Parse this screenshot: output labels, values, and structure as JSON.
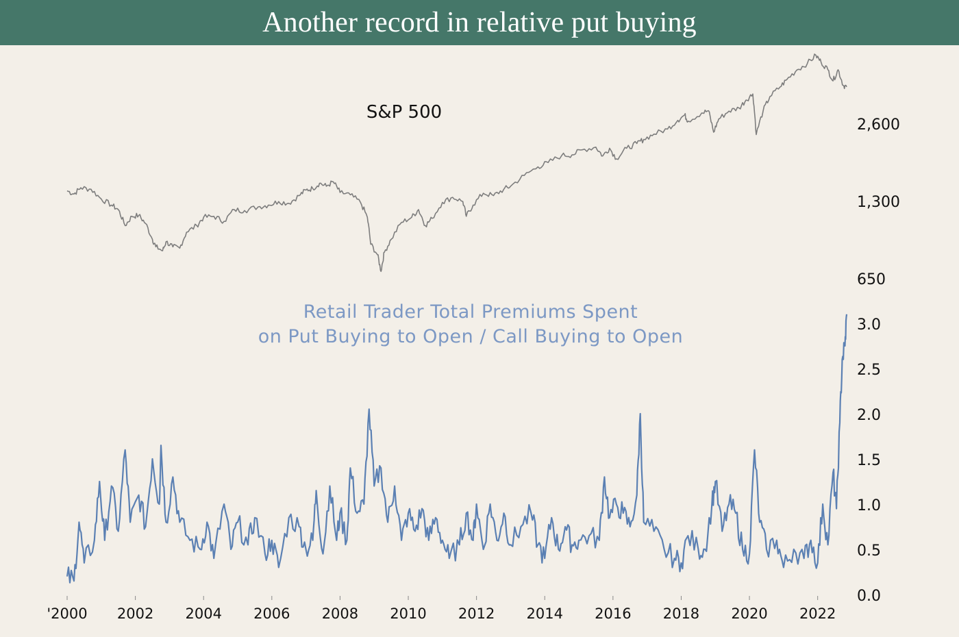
{
  "title": "Another record in relative put buying",
  "colors": {
    "header_bg": "#457769",
    "background": "#f3efe8",
    "sp500_line": "#7d7d7d",
    "ratio_line": "#5b80b3",
    "ratio_label": "#7c98c4",
    "text": "#111111"
  },
  "chart_data": [
    {
      "type": "line",
      "title": "S&P 500",
      "y_scale": "log",
      "yticks": [
        650,
        1300,
        2600
      ],
      "ytick_labels": [
        "650",
        "1,300",
        "2,600"
      ],
      "x_range": [
        2000.0,
        2022.85
      ],
      "series": [
        {
          "values": [
            [
              2000.0,
              1420
            ],
            [
              2000.2,
              1380
            ],
            [
              2000.4,
              1460
            ],
            [
              2000.7,
              1440
            ],
            [
              2001.0,
              1320
            ],
            [
              2001.3,
              1250
            ],
            [
              2001.5,
              1200
            ],
            [
              2001.7,
              1040
            ],
            [
              2001.9,
              1130
            ],
            [
              2002.1,
              1140
            ],
            [
              2002.3,
              1060
            ],
            [
              2002.5,
              920
            ],
            [
              2002.6,
              860
            ],
            [
              2002.8,
              830
            ],
            [
              2002.9,
              900
            ],
            [
              2003.1,
              860
            ],
            [
              2003.3,
              850
            ],
            [
              2003.5,
              980
            ],
            [
              2003.8,
              1040
            ],
            [
              2004.0,
              1120
            ],
            [
              2004.3,
              1130
            ],
            [
              2004.6,
              1080
            ],
            [
              2004.9,
              1200
            ],
            [
              2005.2,
              1190
            ],
            [
              2005.6,
              1230
            ],
            [
              2005.9,
              1250
            ],
            [
              2006.2,
              1290
            ],
            [
              2006.5,
              1270
            ],
            [
              2006.8,
              1360
            ],
            [
              2007.0,
              1430
            ],
            [
              2007.2,
              1450
            ],
            [
              2007.4,
              1520
            ],
            [
              2007.6,
              1480
            ],
            [
              2007.8,
              1540
            ],
            [
              2008.0,
              1400
            ],
            [
              2008.3,
              1370
            ],
            [
              2008.6,
              1280
            ],
            [
              2008.8,
              1120
            ],
            [
              2008.9,
              880
            ],
            [
              2009.1,
              800
            ],
            [
              2009.2,
              690
            ],
            [
              2009.3,
              820
            ],
            [
              2009.5,
              920
            ],
            [
              2009.8,
              1070
            ],
            [
              2010.1,
              1120
            ],
            [
              2010.3,
              1200
            ],
            [
              2010.5,
              1040
            ],
            [
              2010.7,
              1110
            ],
            [
              2011.0,
              1280
            ],
            [
              2011.3,
              1340
            ],
            [
              2011.6,
              1290
            ],
            [
              2011.7,
              1130
            ],
            [
              2011.9,
              1250
            ],
            [
              2012.2,
              1390
            ],
            [
              2012.5,
              1360
            ],
            [
              2012.8,
              1440
            ],
            [
              2013.0,
              1480
            ],
            [
              2013.4,
              1630
            ],
            [
              2013.8,
              1760
            ],
            [
              2014.1,
              1830
            ],
            [
              2014.5,
              1950
            ],
            [
              2014.8,
              1960
            ],
            [
              2015.1,
              2050
            ],
            [
              2015.5,
              2100
            ],
            [
              2015.7,
              1940
            ],
            [
              2015.9,
              2080
            ],
            [
              2016.1,
              1890
            ],
            [
              2016.4,
              2080
            ],
            [
              2016.7,
              2170
            ],
            [
              2016.9,
              2250
            ],
            [
              2017.2,
              2360
            ],
            [
              2017.6,
              2470
            ],
            [
              2017.9,
              2670
            ],
            [
              2018.1,
              2800
            ],
            [
              2018.2,
              2650
            ],
            [
              2018.6,
              2850
            ],
            [
              2018.8,
              2910
            ],
            [
              2018.95,
              2400
            ],
            [
              2019.1,
              2700
            ],
            [
              2019.4,
              2900
            ],
            [
              2019.7,
              2980
            ],
            [
              2019.9,
              3200
            ],
            [
              2020.1,
              3380
            ],
            [
              2020.2,
              2350
            ],
            [
              2020.4,
              2900
            ],
            [
              2020.6,
              3300
            ],
            [
              2020.9,
              3600
            ],
            [
              2021.1,
              3850
            ],
            [
              2021.4,
              4200
            ],
            [
              2021.7,
              4450
            ],
            [
              2021.95,
              4780
            ],
            [
              2022.1,
              4500
            ],
            [
              2022.3,
              4200
            ],
            [
              2022.45,
              3800
            ],
            [
              2022.6,
              4200
            ],
            [
              2022.75,
              3650
            ],
            [
              2022.85,
              3600
            ]
          ]
        }
      ]
    },
    {
      "type": "line",
      "title": "Retail Trader Total Premiums Spent on Put Buying to Open / Call Buying to Open",
      "title_lines": [
        "Retail Trader Total Premiums Spent",
        "on Put Buying to Open / Call Buying to Open"
      ],
      "y_range": [
        0,
        3.0
      ],
      "yticks": [
        0.0,
        0.5,
        1.0,
        1.5,
        2.0,
        2.5,
        3.0
      ],
      "ytick_labels": [
        "0.0",
        "0.5",
        "1.0",
        "1.5",
        "2.0",
        "2.5",
        "3.0"
      ],
      "xticks": [
        2000,
        2002,
        2004,
        2006,
        2008,
        2010,
        2012,
        2014,
        2016,
        2018,
        2020,
        2022
      ],
      "xtick_labels": [
        "'2000",
        "2002",
        "2004",
        "2006",
        "2008",
        "2010",
        "2012",
        "2014",
        "2016",
        "2018",
        "2020",
        "2022"
      ],
      "x_range": [
        2000.0,
        2022.85
      ],
      "series": [
        {
          "values": [
            [
              2000.0,
              0.2
            ],
            [
              2000.2,
              0.15
            ],
            [
              2000.35,
              0.8
            ],
            [
              2000.5,
              0.35
            ],
            [
              2000.8,
              0.6
            ],
            [
              2000.95,
              1.25
            ],
            [
              2001.1,
              0.6
            ],
            [
              2001.3,
              1.2
            ],
            [
              2001.5,
              0.7
            ],
            [
              2001.7,
              1.6
            ],
            [
              2001.85,
              0.8
            ],
            [
              2002.1,
              1.1
            ],
            [
              2002.3,
              0.75
            ],
            [
              2002.5,
              1.5
            ],
            [
              2002.7,
              1.0
            ],
            [
              2002.75,
              1.65
            ],
            [
              2002.9,
              0.8
            ],
            [
              2003.1,
              1.3
            ],
            [
              2003.3,
              0.8
            ],
            [
              2003.6,
              0.6
            ],
            [
              2003.9,
              0.5
            ],
            [
              2004.1,
              0.8
            ],
            [
              2004.3,
              0.4
            ],
            [
              2004.6,
              1.0
            ],
            [
              2004.8,
              0.5
            ],
            [
              2005.0,
              0.8
            ],
            [
              2005.3,
              0.55
            ],
            [
              2005.5,
              0.85
            ],
            [
              2005.8,
              0.45
            ],
            [
              2006.0,
              0.6
            ],
            [
              2006.2,
              0.3
            ],
            [
              2006.5,
              0.85
            ],
            [
              2006.8,
              0.75
            ],
            [
              2007.0,
              0.5
            ],
            [
              2007.2,
              0.6
            ],
            [
              2007.3,
              1.15
            ],
            [
              2007.5,
              0.45
            ],
            [
              2007.7,
              1.2
            ],
            [
              2007.9,
              0.6
            ],
            [
              2008.0,
              0.9
            ],
            [
              2008.2,
              0.6
            ],
            [
              2008.3,
              1.4
            ],
            [
              2008.5,
              0.9
            ],
            [
              2008.7,
              1.0
            ],
            [
              2008.85,
              2.05
            ],
            [
              2009.0,
              1.2
            ],
            [
              2009.2,
              1.4
            ],
            [
              2009.4,
              0.8
            ],
            [
              2009.6,
              1.2
            ],
            [
              2009.8,
              0.6
            ],
            [
              2010.0,
              0.9
            ],
            [
              2010.2,
              0.7
            ],
            [
              2010.4,
              0.95
            ],
            [
              2010.6,
              0.6
            ],
            [
              2010.8,
              0.85
            ],
            [
              2011.0,
              0.6
            ],
            [
              2011.2,
              0.4
            ],
            [
              2011.5,
              0.55
            ],
            [
              2011.7,
              0.9
            ],
            [
              2011.9,
              0.6
            ],
            [
              2012.0,
              1.0
            ],
            [
              2012.2,
              0.5
            ],
            [
              2012.4,
              1.0
            ],
            [
              2012.6,
              0.6
            ],
            [
              2012.8,
              0.9
            ],
            [
              2013.0,
              0.55
            ],
            [
              2013.3,
              0.75
            ],
            [
              2013.6,
              0.9
            ],
            [
              2013.8,
              0.55
            ],
            [
              2014.0,
              0.4
            ],
            [
              2014.2,
              0.85
            ],
            [
              2014.4,
              0.5
            ],
            [
              2014.6,
              0.75
            ],
            [
              2014.8,
              0.55
            ],
            [
              2015.0,
              0.6
            ],
            [
              2015.3,
              0.65
            ],
            [
              2015.6,
              0.6
            ],
            [
              2015.75,
              1.3
            ],
            [
              2015.9,
              0.85
            ],
            [
              2016.1,
              1.0
            ],
            [
              2016.3,
              0.9
            ],
            [
              2016.5,
              0.75
            ],
            [
              2016.7,
              1.1
            ],
            [
              2016.8,
              2.0
            ],
            [
              2016.9,
              0.8
            ],
            [
              2017.2,
              0.7
            ],
            [
              2017.5,
              0.5
            ],
            [
              2017.8,
              0.4
            ],
            [
              2018.0,
              0.35
            ],
            [
              2018.2,
              0.65
            ],
            [
              2018.5,
              0.5
            ],
            [
              2018.7,
              0.5
            ],
            [
              2018.9,
              1.0
            ],
            [
              2019.0,
              1.25
            ],
            [
              2019.2,
              0.7
            ],
            [
              2019.4,
              1.0
            ],
            [
              2019.6,
              0.9
            ],
            [
              2019.8,
              0.5
            ],
            [
              2020.0,
              0.45
            ],
            [
              2020.15,
              1.6
            ],
            [
              2020.3,
              0.8
            ],
            [
              2020.5,
              0.5
            ],
            [
              2020.8,
              0.6
            ],
            [
              2021.0,
              0.3
            ],
            [
              2021.3,
              0.5
            ],
            [
              2021.6,
              0.4
            ],
            [
              2021.8,
              0.6
            ],
            [
              2022.0,
              0.35
            ],
            [
              2022.15,
              1.0
            ],
            [
              2022.3,
              0.55
            ],
            [
              2022.45,
              1.35
            ],
            [
              2022.55,
              0.95
            ],
            [
              2022.65,
              1.9
            ],
            [
              2022.72,
              2.6
            ],
            [
              2022.8,
              2.75
            ],
            [
              2022.85,
              3.1
            ]
          ]
        }
      ]
    }
  ]
}
